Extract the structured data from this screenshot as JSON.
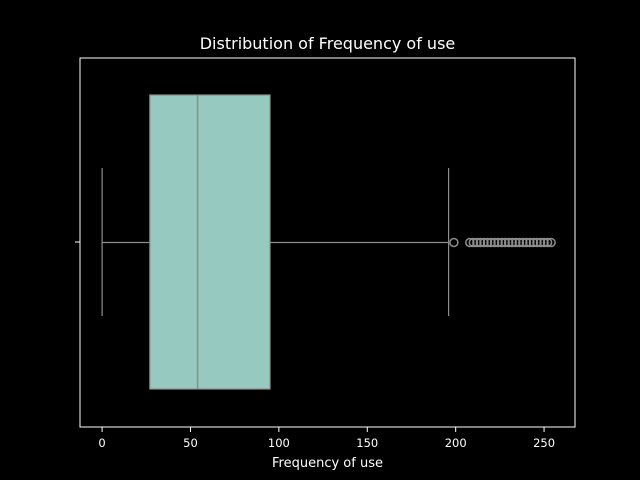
{
  "chart_data": {
    "type": "box",
    "orientation": "horizontal",
    "title": "Distribution of Frequency of use",
    "xlabel": "Frequency of use",
    "ylabel": "",
    "xlim": [
      -12.5,
      267.5
    ],
    "xticks": [
      0,
      50,
      100,
      150,
      200,
      250
    ],
    "grid": false,
    "box": {
      "whisker_low": 0,
      "q1": 27,
      "median": 54,
      "q3": 95,
      "whisker_high": 196
    },
    "outliers": [
      199,
      208,
      210,
      212,
      214,
      216,
      218,
      220,
      222,
      224,
      226,
      228,
      230,
      232,
      234,
      236,
      238,
      240,
      242,
      244,
      246,
      248,
      250,
      252,
      254
    ],
    "colors": {
      "background": "#000000",
      "box_fill": "#96c9c0",
      "lines": "#8c8c8c",
      "axes": "#ffffff",
      "text": "#ffffff"
    }
  }
}
